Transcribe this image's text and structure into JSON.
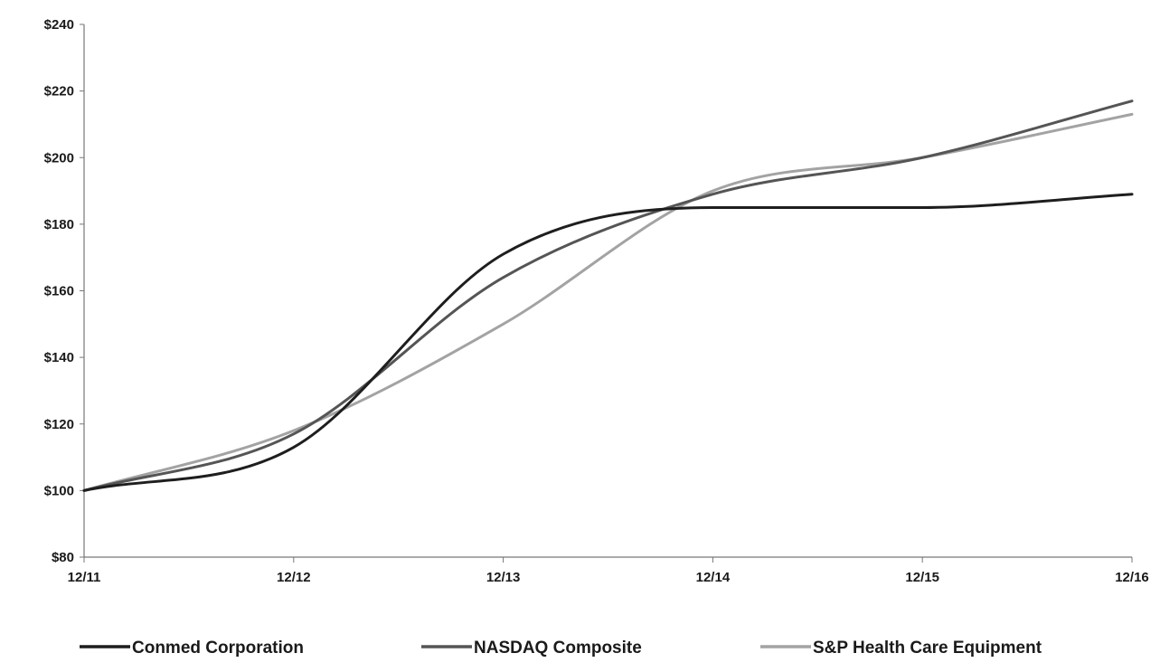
{
  "chart_data": {
    "type": "line",
    "title": "",
    "xlabel": "",
    "ylabel": "",
    "x": [
      "12/11",
      "12/12",
      "12/13",
      "12/14",
      "12/15",
      "12/16"
    ],
    "y_ticks": [
      "$80",
      "$100",
      "$120",
      "$140",
      "$160",
      "$180",
      "$200",
      "$220",
      "$240"
    ],
    "y_tick_values": [
      80,
      100,
      120,
      140,
      160,
      180,
      200,
      220,
      240
    ],
    "ylim": [
      80,
      240
    ],
    "grid": false,
    "smooth": true,
    "legend_position": "bottom",
    "series": [
      {
        "name": "Conmed Corporation",
        "color": "#1e1e1e",
        "values": [
          100,
          113,
          171,
          185,
          185,
          189
        ]
      },
      {
        "name": "NASDAQ Composite",
        "color": "#555555",
        "values": [
          100,
          117,
          164,
          189,
          200,
          217
        ]
      },
      {
        "name": "S&P Health Care Equipment",
        "color": "#a3a3a3",
        "values": [
          100,
          118,
          150,
          190,
          200,
          213
        ]
      }
    ]
  }
}
